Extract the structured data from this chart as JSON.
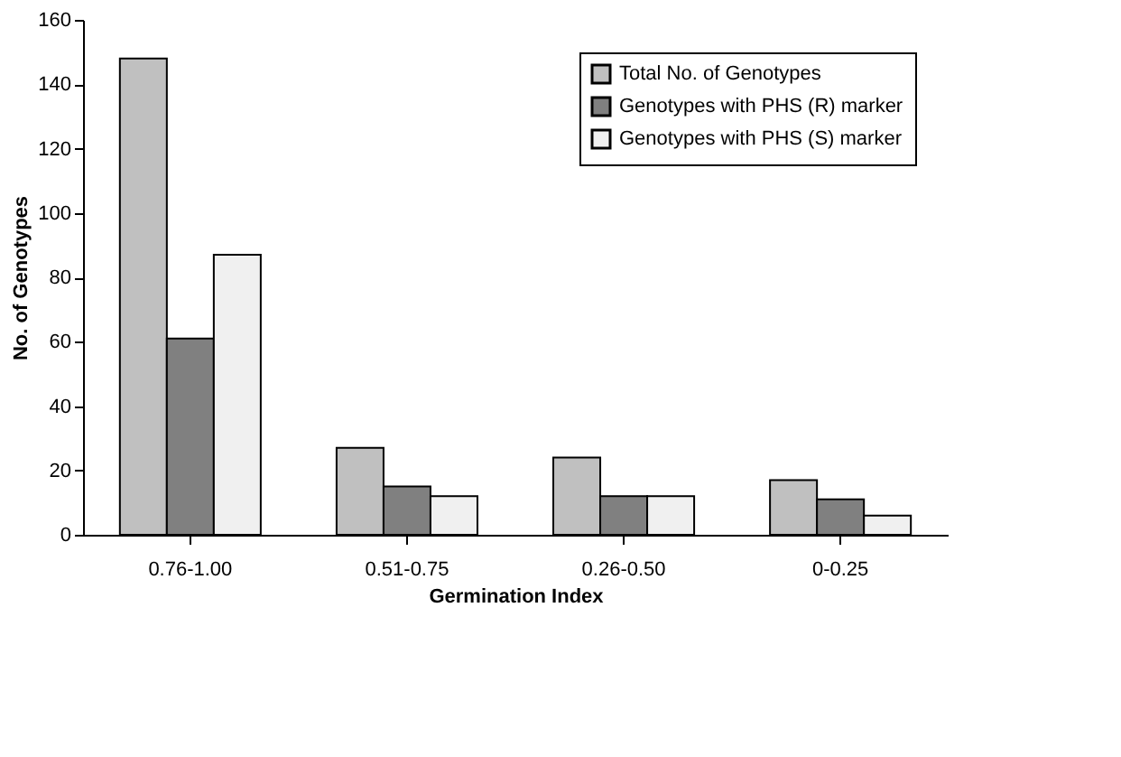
{
  "chart_data": {
    "type": "bar",
    "xlabel": "Germination Index",
    "ylabel": "No. of Genotypes",
    "categories": [
      "0.76-1.00",
      "0.51-0.75",
      "0.26-0.50",
      "0-0.25"
    ],
    "series": [
      {
        "name": "Total No. of Genotypes",
        "color": "#c0c0c0",
        "values": [
          148,
          27,
          24,
          17
        ]
      },
      {
        "name": "Genotypes with PHS (R) marker",
        "color": "#808080",
        "values": [
          61,
          15,
          12,
          11
        ]
      },
      {
        "name": "Genotypes with PHS (S) marker",
        "color": "#f0f0f0",
        "values": [
          87,
          12,
          12,
          6
        ]
      }
    ],
    "ylim": [
      0,
      160
    ],
    "yticks": [
      0,
      20,
      40,
      60,
      80,
      100,
      120,
      140,
      160
    ],
    "grid": false,
    "legend": "top right"
  }
}
